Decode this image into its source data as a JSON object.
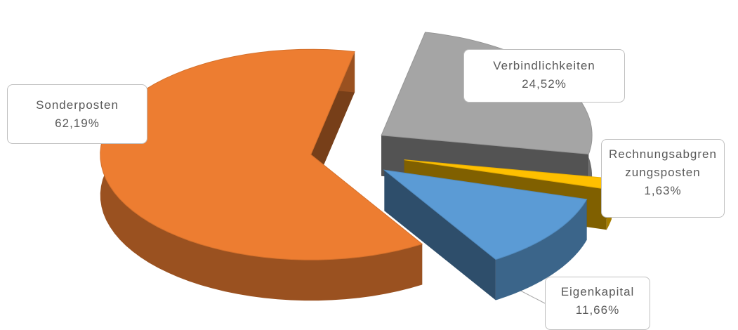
{
  "chart_data": {
    "type": "pie",
    "three_d": true,
    "categories": [
      "Verbindlichkeiten",
      "Rechnungsabgrenzungsposten",
      "Eigenkapital",
      "Sonderposten"
    ],
    "values": [
      24.52,
      1.63,
      11.66,
      62.19
    ],
    "value_labels": [
      "24,52%",
      "1,63%",
      "11,66%",
      "62,19%"
    ],
    "colors": [
      "#a5a5a5",
      "#ffc000",
      "#5b9bd5",
      "#ed7d31"
    ]
  }
}
